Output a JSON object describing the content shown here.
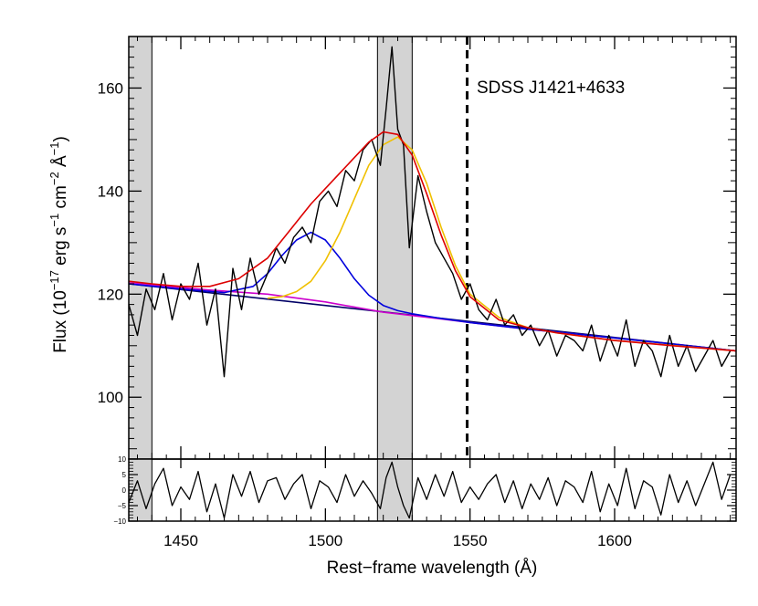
{
  "chart_data": [
    {
      "type": "line",
      "panel": "main",
      "annotation": "SDSS J1421+4633",
      "ylabel_main": "Flux (10",
      "ylabel_exp1": "−17",
      "ylabel_mid": " erg s",
      "ylabel_exp2": "−1",
      "ylabel_mid2": " cm",
      "ylabel_exp3": "−2",
      "ylabel_mid3": " Å",
      "ylabel_exp4": "−1",
      "ylabel_end": ")",
      "xlim": [
        1432,
        1642
      ],
      "ylim": [
        88,
        170
      ],
      "x_ticks": [
        1450,
        1500,
        1550,
        1600
      ],
      "y_ticks": [
        100,
        120,
        140,
        160
      ],
      "y_tick_labels": [
        "100",
        "120",
        "140",
        "160"
      ],
      "shaded_regions": [
        [
          1432,
          1440
        ],
        [
          1518,
          1530
        ]
      ],
      "vertical_dashed_line": 1549,
      "series": [
        {
          "color": "#000000",
          "role": "observed spectrum",
          "x": [
            1432,
            1435,
            1438,
            1441,
            1444,
            1447,
            1450,
            1453,
            1456,
            1459,
            1462,
            1465,
            1468,
            1471,
            1474,
            1477,
            1480,
            1483,
            1486,
            1489,
            1492,
            1495,
            1498,
            1501,
            1504,
            1507,
            1510,
            1513,
            1516,
            1519,
            1521,
            1523,
            1525,
            1527,
            1529,
            1532,
            1535,
            1538,
            1541,
            1544,
            1547,
            1550,
            1553,
            1556,
            1559,
            1562,
            1565,
            1568,
            1571,
            1574,
            1577,
            1580,
            1583,
            1586,
            1589,
            1592,
            1595,
            1598,
            1601,
            1604,
            1607,
            1610,
            1613,
            1616,
            1619,
            1622,
            1625,
            1628,
            1631,
            1634,
            1637,
            1640
          ],
          "y": [
            118,
            112,
            121,
            117,
            124,
            115,
            122,
            119,
            126,
            114,
            121,
            104,
            125,
            117,
            127,
            120,
            124,
            129,
            126,
            131,
            133,
            130,
            138,
            140,
            137,
            144,
            142,
            148,
            150,
            145,
            156,
            168,
            152,
            149,
            129,
            143,
            136,
            130,
            127,
            124,
            119,
            122,
            117,
            115,
            119,
            114,
            116,
            112,
            114,
            110,
            113,
            108,
            112,
            111,
            109,
            114,
            107,
            112,
            108,
            115,
            106,
            111,
            109,
            104,
            112,
            106,
            110,
            105,
            108,
            111,
            106,
            109
          ]
        },
        {
          "color": "#dd0000",
          "role": "total model fit",
          "x": [
            1432,
            1440,
            1450,
            1460,
            1470,
            1480,
            1490,
            1495,
            1500,
            1505,
            1510,
            1515,
            1520,
            1525,
            1530,
            1535,
            1540,
            1545,
            1550,
            1560,
            1570,
            1580,
            1600,
            1620,
            1642
          ],
          "y": [
            122.5,
            122.0,
            121.5,
            121.5,
            123.0,
            127.0,
            134.0,
            137.5,
            140.5,
            143.5,
            146.5,
            149.5,
            151.5,
            151.0,
            147.0,
            139.5,
            131.5,
            124.5,
            119.5,
            115.0,
            113.5,
            112.5,
            111.0,
            110.0,
            109.0
          ]
        },
        {
          "color": "#0000dd",
          "role": "broad Gaussian component 1",
          "x": [
            1432,
            1450,
            1465,
            1475,
            1480,
            1485,
            1490,
            1495,
            1500,
            1505,
            1510,
            1515,
            1520,
            1525,
            1530,
            1540,
            1550,
            1570,
            1600,
            1642
          ],
          "y": [
            122.0,
            121.0,
            120.3,
            121.5,
            124.0,
            127.5,
            130.5,
            132.0,
            130.5,
            127.0,
            123.0,
            119.8,
            117.8,
            116.8,
            116.2,
            115.3,
            114.5,
            113.2,
            111.5,
            109.0
          ]
        },
        {
          "color": "#f0c000",
          "role": "broad Gaussian component 2",
          "x": [
            1480,
            1485,
            1490,
            1495,
            1500,
            1505,
            1510,
            1515,
            1520,
            1525,
            1530,
            1535,
            1540,
            1545,
            1550,
            1560,
            1570,
            1580,
            1600,
            1642
          ],
          "y": [
            119.2,
            119.5,
            120.5,
            122.5,
            126.5,
            132.0,
            138.5,
            145.0,
            149.0,
            150.5,
            148.0,
            141.5,
            133.0,
            125.5,
            120.0,
            115.5,
            113.5,
            112.5,
            111.0,
            109.0
          ]
        },
        {
          "color": "#cc00cc",
          "role": "pseudo-continuum",
          "x": [
            1432,
            1460,
            1480,
            1500,
            1520,
            1540,
            1550,
            1570,
            1600,
            1642
          ],
          "y": [
            122.2,
            120.8,
            120.0,
            118.5,
            116.5,
            115.2,
            114.5,
            113.2,
            111.5,
            109.0
          ]
        },
        {
          "color": "#000066",
          "role": "power-law continuum",
          "x": [
            1432,
            1642
          ],
          "y": [
            122.0,
            109.0
          ]
        }
      ]
    },
    {
      "type": "line",
      "panel": "residuals",
      "xlabel": "Rest−frame wavelength (Å)",
      "x_tick_labels": [
        "1450",
        "1500",
        "1550",
        "1600"
      ],
      "ylim": [
        -10,
        10
      ],
      "y_ticks": [
        -10,
        -5,
        0,
        5,
        10
      ],
      "y_tick_labels": [
        "−10",
        "−5",
        "0",
        "5",
        "10"
      ],
      "series": [
        {
          "color": "#000000",
          "role": "residuals",
          "x": [
            1432,
            1435,
            1438,
            1441,
            1444,
            1447,
            1450,
            1453,
            1456,
            1459,
            1462,
            1465,
            1468,
            1471,
            1474,
            1477,
            1480,
            1483,
            1486,
            1489,
            1492,
            1495,
            1498,
            1501,
            1504,
            1507,
            1510,
            1513,
            1516,
            1519,
            1521,
            1523,
            1525,
            1527,
            1529,
            1532,
            1535,
            1538,
            1541,
            1544,
            1547,
            1550,
            1553,
            1556,
            1559,
            1562,
            1565,
            1568,
            1571,
            1574,
            1577,
            1580,
            1583,
            1586,
            1589,
            1592,
            1595,
            1598,
            1601,
            1604,
            1607,
            1610,
            1613,
            1616,
            1619,
            1622,
            1625,
            1628,
            1631,
            1634,
            1637,
            1640
          ],
          "y": [
            -4,
            3,
            -6,
            2,
            7,
            -5,
            1,
            -3,
            6,
            -7,
            2,
            -9,
            5,
            -2,
            6,
            -4,
            3,
            4,
            -3,
            2,
            5,
            -6,
            3,
            1,
            -4,
            5,
            -2,
            3,
            -1,
            -6,
            4,
            9,
            1,
            -5,
            -9,
            4,
            -3,
            5,
            -2,
            6,
            -4,
            1,
            -3,
            2,
            5,
            -4,
            3,
            -6,
            2,
            -3,
            4,
            -5,
            3,
            1,
            -4,
            6,
            -7,
            2,
            -5,
            7,
            -6,
            3,
            1,
            -8,
            5,
            -4,
            3,
            -5,
            2,
            9,
            -3,
            5
          ]
        }
      ]
    }
  ]
}
